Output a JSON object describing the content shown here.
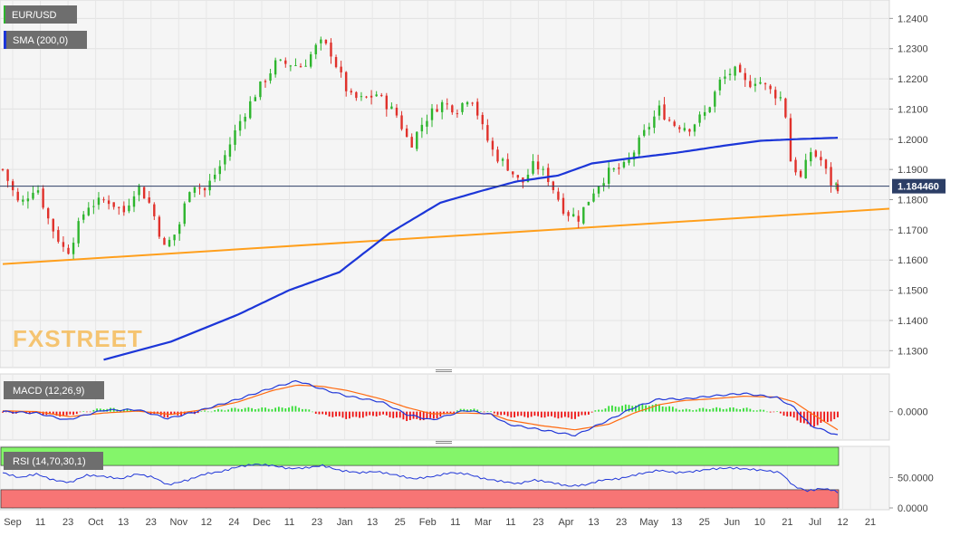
{
  "chart_data": {
    "type": "candlestick",
    "symbol": "EUR/USD",
    "brand": "FXSTREET",
    "last_price_label": "1.184460",
    "last_price": 1.18446,
    "colors": {
      "background": "#f5f5f5",
      "up": "#2db52d",
      "down": "#e0312b",
      "sma": "#1c36d8",
      "trendline": "#ff9f1c",
      "macd_line": "#2137d8",
      "signal_line": "#ff6a10",
      "rsi_line": "#2137d8",
      "rsi_overbought": "#84f56a",
      "rsi_oversold": "#f77575",
      "price_line": "#2c3e66",
      "brand": "#f5b03a"
    },
    "price_panel": {
      "ylim": [
        1.125,
        1.2455
      ],
      "ticks": [
        "1.2400",
        "1.2300",
        "1.2200",
        "1.2100",
        "1.2000",
        "1.1900",
        "1.1800",
        "1.1700",
        "1.1600",
        "1.1500",
        "1.1400",
        "1.1300"
      ],
      "tick_values": [
        1.24,
        1.23,
        1.22,
        1.21,
        1.2,
        1.19,
        1.18,
        1.17,
        1.16,
        1.15,
        1.14,
        1.13
      ]
    },
    "time_axis": {
      "labels": [
        "Sep",
        "11",
        "23",
        "Oct",
        "13",
        "23",
        "Nov",
        "12",
        "24",
        "Dec",
        "11",
        "23",
        "Jan",
        "13",
        "25",
        "Feb",
        "11",
        "Mar",
        "11",
        "23",
        "Apr",
        "13",
        "23",
        "May",
        "13",
        "25",
        "Jun",
        "10",
        "21",
        "Jul",
        "12",
        "21"
      ],
      "first_date": "2020-09-01",
      "last_date": "2021-07-01"
    },
    "series": [
      {
        "name": "EUR/USD",
        "kind": "candles",
        "keypoints_close": [
          [
            0,
            1.19
          ],
          [
            10,
            1.178
          ],
          [
            20,
            1.185
          ],
          [
            28,
            1.172
          ],
          [
            38,
            1.162
          ],
          [
            50,
            1.178
          ],
          [
            62,
            1.18
          ],
          [
            72,
            1.176
          ],
          [
            80,
            1.185
          ],
          [
            88,
            1.178
          ],
          [
            96,
            1.164
          ],
          [
            104,
            1.17
          ],
          [
            112,
            1.186
          ],
          [
            120,
            1.183
          ],
          [
            130,
            1.192
          ],
          [
            140,
            1.205
          ],
          [
            150,
            1.215
          ],
          [
            162,
            1.225
          ],
          [
            172,
            1.225
          ],
          [
            178,
            1.224
          ],
          [
            188,
            1.232
          ],
          [
            194,
            1.23
          ],
          [
            206,
            1.214
          ],
          [
            214,
            1.213
          ],
          [
            222,
            1.215
          ],
          [
            234,
            1.208
          ],
          [
            242,
            1.198
          ],
          [
            250,
            1.206
          ],
          [
            260,
            1.212
          ],
          [
            270,
            1.21
          ],
          [
            278,
            1.215
          ],
          [
            286,
            1.202
          ],
          [
            292,
            1.195
          ],
          [
            300,
            1.191
          ],
          [
            308,
            1.185
          ],
          [
            316,
            1.192
          ],
          [
            324,
            1.187
          ],
          [
            334,
            1.176
          ],
          [
            342,
            1.174
          ],
          [
            352,
            1.184
          ],
          [
            360,
            1.189
          ],
          [
            370,
            1.191
          ],
          [
            380,
            1.201
          ],
          [
            390,
            1.21
          ],
          [
            398,
            1.205
          ],
          [
            408,
            1.204
          ],
          [
            418,
            1.209
          ],
          [
            426,
            1.219
          ],
          [
            434,
            1.223
          ],
          [
            442,
            1.218
          ],
          [
            448,
            1.22
          ],
          [
            456,
            1.216
          ],
          [
            464,
            1.213
          ],
          [
            468,
            1.193
          ],
          [
            474,
            1.187
          ],
          [
            480,
            1.196
          ],
          [
            486,
            1.193
          ],
          [
            492,
            1.1855
          ],
          [
            496,
            1.18446
          ]
        ]
      },
      {
        "name": "SMA (200,0)",
        "kind": "line",
        "points": [
          [
            60,
            1.127
          ],
          [
            100,
            1.133
          ],
          [
            140,
            1.142
          ],
          [
            170,
            1.15
          ],
          [
            200,
            1.156
          ],
          [
            230,
            1.169
          ],
          [
            260,
            1.179
          ],
          [
            285,
            1.183
          ],
          [
            305,
            1.186
          ],
          [
            330,
            1.188
          ],
          [
            350,
            1.192
          ],
          [
            370,
            1.1935
          ],
          [
            400,
            1.1955
          ],
          [
            430,
            1.198
          ],
          [
            450,
            1.1995
          ],
          [
            470,
            1.2
          ],
          [
            496,
            1.2005
          ]
        ]
      },
      {
        "name": "Trendline",
        "kind": "line",
        "points": [
          [
            0,
            1.1587
          ],
          [
            525,
            1.177
          ]
        ]
      }
    ],
    "macd": {
      "label": "MACD (12,26,9)",
      "tick_label": "0.0000",
      "tick_value": 0,
      "ylim": [
        -0.0095,
        0.0125
      ],
      "macd_keypoints": [
        [
          0,
          0.0
        ],
        [
          20,
          -0.0005
        ],
        [
          38,
          -0.003
        ],
        [
          60,
          0.0005
        ],
        [
          80,
          0.0007
        ],
        [
          98,
          -0.0025
        ],
        [
          115,
          0.0
        ],
        [
          140,
          0.0045
        ],
        [
          160,
          0.0085
        ],
        [
          175,
          0.011
        ],
        [
          190,
          0.008
        ],
        [
          205,
          0.0055
        ],
        [
          225,
          0.0035
        ],
        [
          240,
          -0.001
        ],
        [
          255,
          -0.003
        ],
        [
          275,
          0.0005
        ],
        [
          290,
          -0.001
        ],
        [
          300,
          -0.0045
        ],
        [
          320,
          -0.0065
        ],
        [
          340,
          -0.0085
        ],
        [
          360,
          -0.003
        ],
        [
          375,
          0.0015
        ],
        [
          390,
          0.0045
        ],
        [
          405,
          0.0045
        ],
        [
          420,
          0.0055
        ],
        [
          440,
          0.0065
        ],
        [
          460,
          0.005
        ],
        [
          470,
          0.0015
        ],
        [
          480,
          -0.005
        ],
        [
          496,
          -0.0085
        ]
      ],
      "signal_keypoints": [
        [
          0,
          0.0003
        ],
        [
          20,
          0.0
        ],
        [
          40,
          -0.0018
        ],
        [
          60,
          -0.0005
        ],
        [
          80,
          0.0002
        ],
        [
          100,
          -0.001
        ],
        [
          120,
          0.0008
        ],
        [
          140,
          0.0035
        ],
        [
          160,
          0.0075
        ],
        [
          175,
          0.0095
        ],
        [
          190,
          0.009
        ],
        [
          205,
          0.0075
        ],
        [
          225,
          0.0045
        ],
        [
          240,
          0.0015
        ],
        [
          255,
          -0.0008
        ],
        [
          275,
          -0.0005
        ],
        [
          290,
          -0.0008
        ],
        [
          300,
          -0.003
        ],
        [
          320,
          -0.005
        ],
        [
          340,
          -0.0065
        ],
        [
          360,
          -0.0045
        ],
        [
          375,
          -0.0005
        ],
        [
          390,
          0.0025
        ],
        [
          405,
          0.004
        ],
        [
          420,
          0.0045
        ],
        [
          440,
          0.0055
        ],
        [
          460,
          0.0052
        ],
        [
          470,
          0.0035
        ],
        [
          480,
          -0.0005
        ],
        [
          496,
          -0.0065
        ]
      ]
    },
    "rsi": {
      "label": "RSI (14,70,30,1)",
      "ticks": [
        "50.0000",
        "0.0000"
      ],
      "tick_values": [
        50,
        0
      ],
      "ylim": [
        0,
        100
      ],
      "overbought": 70,
      "oversold": 30,
      "keypoints": [
        [
          0,
          58
        ],
        [
          10,
          50
        ],
        [
          20,
          56
        ],
        [
          30,
          46
        ],
        [
          40,
          42
        ],
        [
          50,
          54
        ],
        [
          60,
          52
        ],
        [
          70,
          48
        ],
        [
          80,
          56
        ],
        [
          90,
          50
        ],
        [
          98,
          38
        ],
        [
          110,
          46
        ],
        [
          120,
          56
        ],
        [
          130,
          60
        ],
        [
          140,
          68
        ],
        [
          150,
          72
        ],
        [
          160,
          70
        ],
        [
          170,
          65
        ],
        [
          180,
          66
        ],
        [
          190,
          70
        ],
        [
          200,
          62
        ],
        [
          212,
          58
        ],
        [
          222,
          60
        ],
        [
          234,
          54
        ],
        [
          244,
          48
        ],
        [
          256,
          52
        ],
        [
          266,
          58
        ],
        [
          276,
          56
        ],
        [
          286,
          48
        ],
        [
          296,
          44
        ],
        [
          306,
          40
        ],
        [
          316,
          46
        ],
        [
          326,
          42
        ],
        [
          336,
          36
        ],
        [
          346,
          38
        ],
        [
          356,
          46
        ],
        [
          366,
          48
        ],
        [
          378,
          56
        ],
        [
          390,
          62
        ],
        [
          400,
          58
        ],
        [
          410,
          60
        ],
        [
          420,
          64
        ],
        [
          432,
          66
        ],
        [
          442,
          64
        ],
        [
          452,
          62
        ],
        [
          462,
          58
        ],
        [
          470,
          36
        ],
        [
          478,
          28
        ],
        [
          486,
          32
        ],
        [
          492,
          30
        ],
        [
          496,
          26
        ]
      ]
    }
  }
}
